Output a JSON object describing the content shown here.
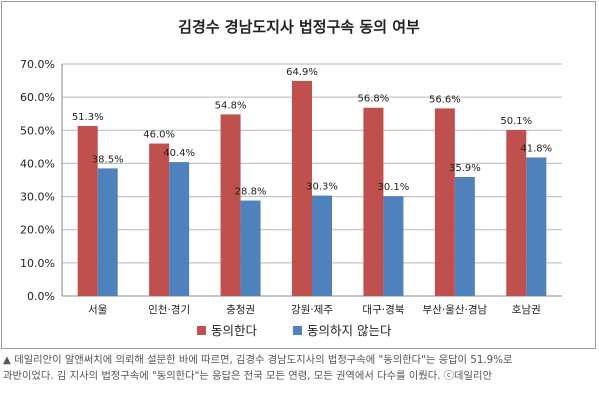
{
  "chart_data": {
    "type": "bar",
    "title": "김경수 경남도지사 법정구속 동의 여부",
    "categories": [
      "서울",
      "인천·경기",
      "충청권",
      "강원·제주",
      "대구·경북",
      "부산·울산·경남",
      "호남권"
    ],
    "series": [
      {
        "name": "동의한다",
        "color": "#c0504d",
        "values": [
          51.3,
          46.0,
          54.8,
          64.9,
          56.8,
          56.6,
          50.1
        ],
        "labels": [
          "51.3%",
          "46.0%",
          "54.8%",
          "64.9%",
          "56.8%",
          "56.6%",
          "50.1%"
        ]
      },
      {
        "name": "동의하지 않는다",
        "color": "#4f81bd",
        "values": [
          38.5,
          40.4,
          28.8,
          30.3,
          30.1,
          35.9,
          41.8
        ],
        "labels": [
          "38.5%",
          "40.4%",
          "28.8%",
          "30.3%",
          "30.1%",
          "35.9%",
          "41.8%"
        ]
      }
    ],
    "yticks": [
      "0.0%",
      "10.0%",
      "20.0%",
      "30.0%",
      "40.0%",
      "50.0%",
      "60.0%",
      "70.0%"
    ],
    "ylim": [
      0,
      70
    ],
    "grid": true,
    "legend_position": "bottom"
  },
  "caption": {
    "line1": "▲ 데일리안이 알앤써치에 의뢰해 설문한 바에 따르면, 김경수 경남도지사의 법정구속에 \"동의한다\"는 응답이 51.9%로",
    "line2": "과반이었다. 김 지사의 법정구속에 \"동의한다\"는 응답은 전국 모든 연령, 모든 권역에서 다수를 이뤘다. ⓒ데일리안"
  }
}
